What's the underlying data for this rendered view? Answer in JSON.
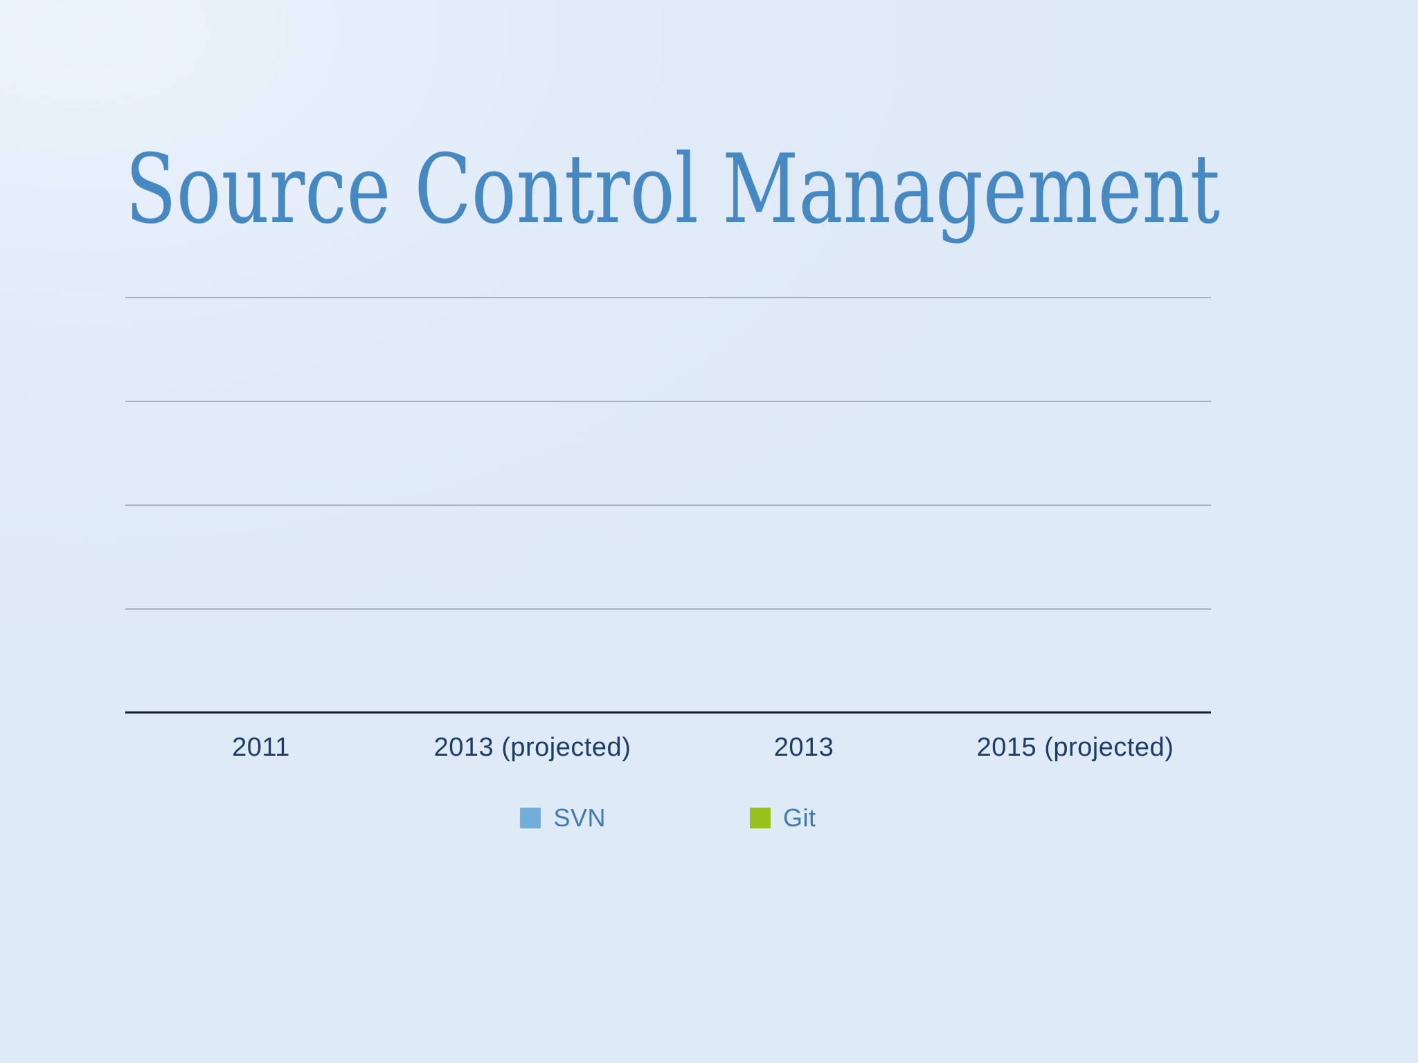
{
  "page": {
    "title": "Source Control Management",
    "background_color": "#e0ebf7",
    "title_color": "#4689c2"
  },
  "chart_data": {
    "type": "bar",
    "title": "Source Control Management",
    "categories": [
      "2011",
      "2013 (projected)",
      "2013",
      "2015 (projected)"
    ],
    "series": [
      {
        "name": "SVN",
        "color": "#72aeda",
        "values": []
      },
      {
        "name": "Git",
        "color": "#98c11d",
        "values": []
      }
    ],
    "xlabel": "",
    "ylabel": "",
    "y_tick_labels": [],
    "gridlines": {
      "horizontal_count": 4,
      "grid_on": true,
      "gridline_color": "#a9b1bc"
    },
    "axis_line_color": "#121c26",
    "x_tick_label_color": "#1d3c66",
    "legend_position": "bottom-center",
    "plot_area_empty": true
  },
  "legend": {
    "items": [
      {
        "label": "SVN",
        "color": "#72aeda"
      },
      {
        "label": "Git",
        "color": "#98c11d"
      }
    ],
    "label_color": "#3e7ab2"
  }
}
